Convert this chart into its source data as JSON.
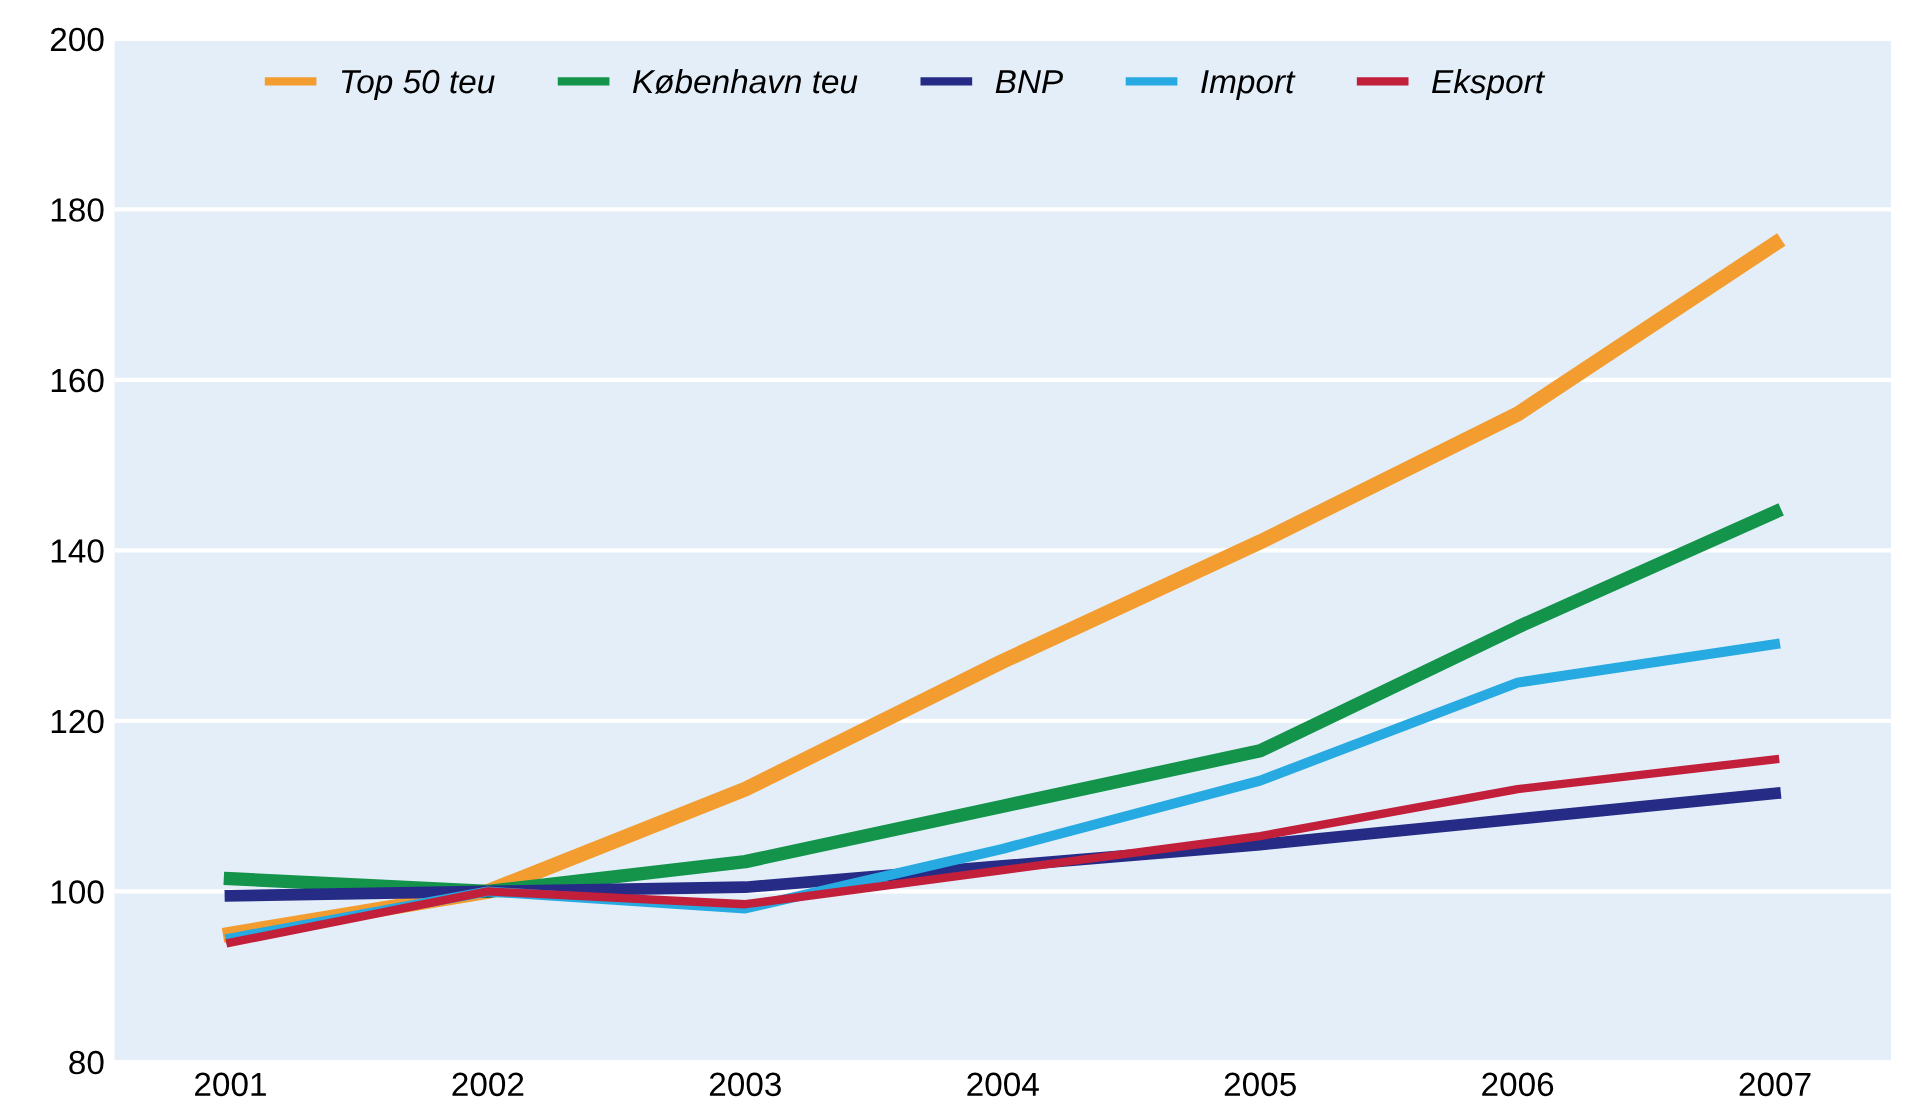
{
  "chart_data": {
    "type": "line",
    "categories": [
      "2001",
      "2002",
      "2003",
      "2004",
      "2005",
      "2006",
      "2007"
    ],
    "ylim": [
      80,
      200
    ],
    "yticks": [
      80,
      100,
      120,
      140,
      160,
      180,
      200
    ],
    "grid": "y",
    "legend": "top left",
    "marker": "none",
    "line_style": "solid",
    "series": [
      {
        "name": "Top 50 teu",
        "color": "#f39c2f",
        "values": [
          95,
          100,
          112,
          127,
          141,
          156,
          176
        ]
      },
      {
        "name": "København teu",
        "color": "#13944a",
        "values": [
          101.5,
          100,
          103.5,
          110,
          116.5,
          131,
          144.5
        ]
      },
      {
        "name": "BNP",
        "color": "#262c86",
        "values": [
          99.5,
          100,
          100.5,
          103,
          105.5,
          108.5,
          111.5
        ]
      },
      {
        "name": "Import",
        "color": "#27a9e1",
        "values": [
          94.5,
          100,
          98,
          105,
          113,
          124.5,
          129
        ]
      },
      {
        "name": "Eksport",
        "color": "#c21f3a",
        "values": [
          94,
          100,
          98.5,
          102.5,
          106.5,
          112,
          115.5
        ]
      }
    ]
  }
}
